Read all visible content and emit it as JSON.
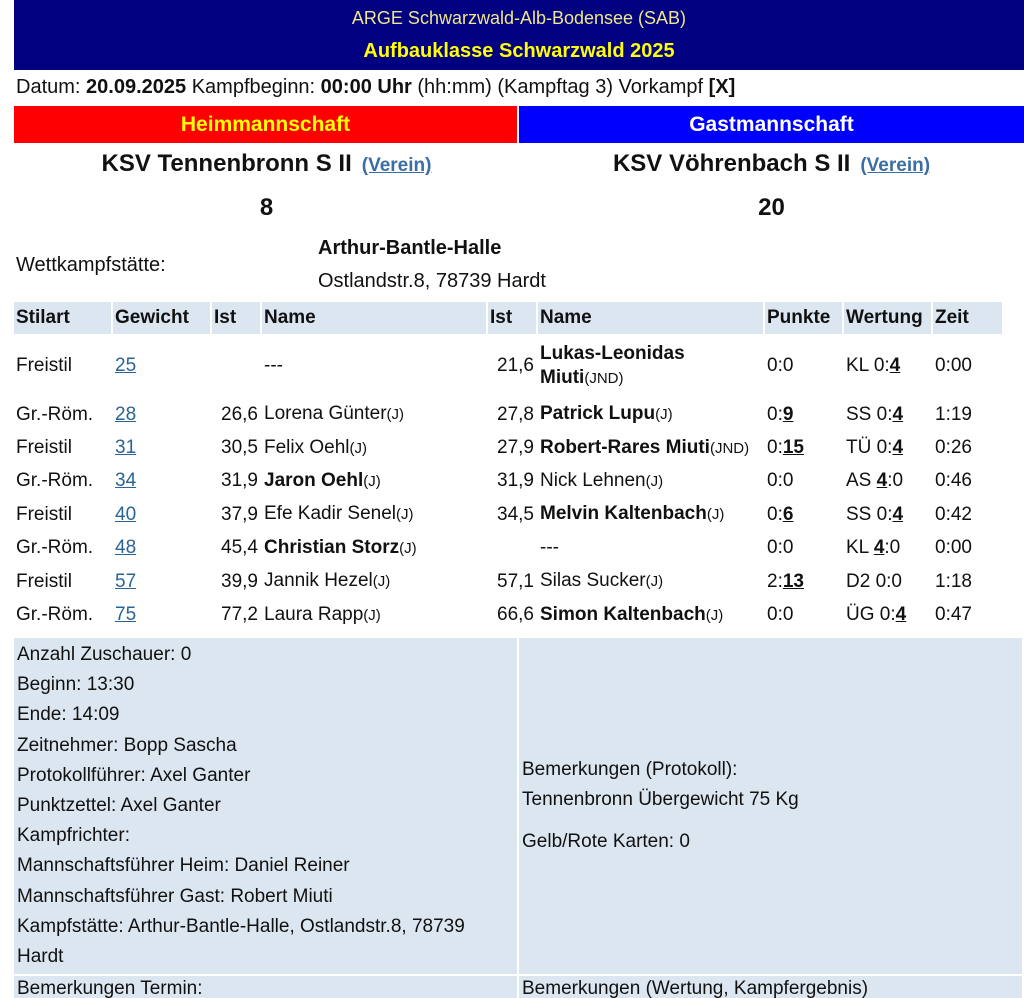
{
  "header": {
    "org": "ARGE Schwarzwald-Alb-Bodensee (SAB)",
    "league": "Aufbauklasse Schwarzwald 2025"
  },
  "info": [
    {
      "text": "Datum: "
    },
    {
      "text": "20.09.2025",
      "bold": true
    },
    {
      "text": " Kampfbeginn: "
    },
    {
      "text": "00:00 Uhr",
      "bold": true
    },
    {
      "text": " (hh:mm) (Kampftag 3) Vorkampf "
    },
    {
      "text": "[X]",
      "bold": true
    }
  ],
  "teams": {
    "home": {
      "label": "Heimmannschaft",
      "name": "KSV Tennenbronn S II",
      "link": "(Verein)",
      "score": "8"
    },
    "away": {
      "label": "Gastmannschaft",
      "name": "KSV Vöhrenbach S II",
      "link": "(Verein)",
      "score": "20"
    }
  },
  "venue": {
    "label": "Wettkampfstätte:",
    "name": "Arthur-Bantle-Halle",
    "address": "Ostlandstr.8, 78739 Hardt"
  },
  "table": {
    "headers": [
      "Stilart",
      "Gewicht",
      "Ist",
      "Name",
      "Ist",
      "Name",
      "Punkte",
      "Wertung",
      "Zeit"
    ],
    "rows": [
      {
        "stil": "Freistil",
        "gewicht": "25",
        "ist1": null,
        "home": {
          "name": "---"
        },
        "ist2": "21,6",
        "away": {
          "name": "Lukas-Leonidas Miuti",
          "tag": "(JND)",
          "bold": true
        },
        "punkte": [
          {
            "text": "0:0"
          }
        ],
        "wertung": [
          {
            "text": "KL 0:"
          },
          {
            "text": "4",
            "strong": true
          }
        ],
        "zeit": "0:00"
      },
      {
        "stil": "Gr.-Röm.",
        "gewicht": "28",
        "ist1": "26,6",
        "home": {
          "name": "Lorena Günter",
          "tag": "(J)"
        },
        "ist2": "27,8",
        "away": {
          "name": "Patrick Lupu",
          "tag": "(J)",
          "bold": true
        },
        "punkte": [
          {
            "text": "0:"
          },
          {
            "text": "9",
            "strong": true
          }
        ],
        "wertung": [
          {
            "text": "SS 0:"
          },
          {
            "text": "4",
            "strong": true
          }
        ],
        "zeit": "1:19"
      },
      {
        "stil": "Freistil",
        "gewicht": "31",
        "ist1": "30,5",
        "home": {
          "name": "Felix Oehl",
          "tag": "(J)"
        },
        "ist2": "27,9",
        "away": {
          "name": "Robert-Rares Miuti",
          "tag": "(JND)",
          "bold": true
        },
        "punkte": [
          {
            "text": "0:"
          },
          {
            "text": "15",
            "strong": true
          }
        ],
        "wertung": [
          {
            "text": "TÜ 0:"
          },
          {
            "text": "4",
            "strong": true
          }
        ],
        "zeit": "0:26"
      },
      {
        "stil": "Gr.-Röm.",
        "gewicht": "34",
        "ist1": "31,9",
        "home": {
          "name": "Jaron Oehl",
          "tag": "(J)",
          "bold": true
        },
        "ist2": "31,9",
        "away": {
          "name": "Nick Lehnen",
          "tag": "(J)"
        },
        "punkte": [
          {
            "text": "0:0"
          }
        ],
        "wertung": [
          {
            "text": "AS "
          },
          {
            "text": "4",
            "strong": true
          },
          {
            "text": ":0"
          }
        ],
        "zeit": "0:46"
      },
      {
        "stil": "Freistil",
        "gewicht": "40",
        "ist1": "37,9",
        "home": {
          "name": "Efe Kadir Senel",
          "tag": "(J)"
        },
        "ist2": "34,5",
        "away": {
          "name": "Melvin Kaltenbach",
          "tag": "(J)",
          "bold": true
        },
        "punkte": [
          {
            "text": "0:"
          },
          {
            "text": "6",
            "strong": true
          }
        ],
        "wertung": [
          {
            "text": "SS 0:"
          },
          {
            "text": "4",
            "strong": true
          }
        ],
        "zeit": "0:42"
      },
      {
        "stil": "Gr.-Röm.",
        "gewicht": "48",
        "ist1": "45,4",
        "home": {
          "name": "Christian Storz",
          "tag": "(J)",
          "bold": true
        },
        "ist2": null,
        "away": {
          "name": "---"
        },
        "punkte": [
          {
            "text": "0:0"
          }
        ],
        "wertung": [
          {
            "text": "KL "
          },
          {
            "text": "4",
            "strong": true
          },
          {
            "text": ":0"
          }
        ],
        "zeit": "0:00"
      },
      {
        "stil": "Freistil",
        "gewicht": "57",
        "ist1": "39,9",
        "home": {
          "name": "Jannik Hezel",
          "tag": "(J)"
        },
        "ist2": "57,1",
        "away": {
          "name": "Silas Sucker",
          "tag": "(J)"
        },
        "punkte": [
          {
            "text": "2:"
          },
          {
            "text": "13",
            "strong": true
          }
        ],
        "wertung": [
          {
            "text": "D2 0:0"
          }
        ],
        "zeit": "1:18"
      },
      {
        "stil": "Gr.-Röm.",
        "gewicht": "75",
        "ist1": "77,2",
        "home": {
          "name": "Laura Rapp",
          "tag": "(J)"
        },
        "ist2": "66,6",
        "away": {
          "name": "Simon Kaltenbach",
          "tag": "(J)",
          "bold": true
        },
        "punkte": [
          {
            "text": "0:0"
          }
        ],
        "wertung": [
          {
            "text": "ÜG 0:"
          },
          {
            "text": "4",
            "strong": true
          }
        ],
        "zeit": "0:47"
      }
    ]
  },
  "details": [
    "Anzahl Zuschauer: 0",
    "Beginn: 13:30",
    "Ende: 14:09",
    "Zeitnehmer: Bopp Sascha",
    "Protokollführer: Axel Ganter",
    "Punktzettel: Axel Ganter",
    "Kampfrichter:",
    "Mannschaftsführer Heim: Daniel Reiner",
    "Mannschaftsführer Gast: Robert Miuti",
    "Kampfstätte: Arthur-Bantle-Halle, Ostlandstr.8, 78739 Hardt"
  ],
  "remarks": {
    "label": "Bemerkungen (Protokoll):",
    "text": "Tennenbronn Übergewicht 75 Kg",
    "cards": "Gelb/Rote Karten: 0"
  },
  "footer": {
    "left": "Bemerkungen Termin:",
    "right": "Bemerkungen (Wertung, Kampfergebnis)"
  }
}
